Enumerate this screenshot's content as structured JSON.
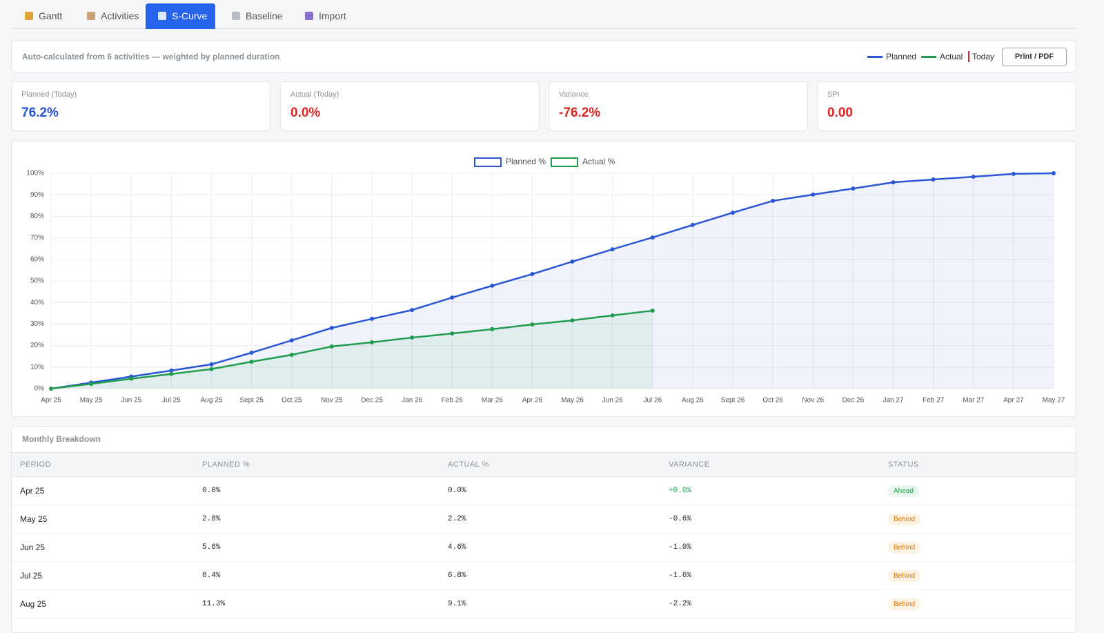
{
  "tabs": [
    "Gantt",
    "Activities",
    "S-Curve",
    "Baseline",
    "Import"
  ],
  "header": {
    "note": "Auto-calculated from 6 activities — weighted by planned duration",
    "legend": [
      "Planned",
      "Actual",
      "Today"
    ],
    "button": "Print / PDF"
  },
  "cards": [
    {
      "label": "Planned (Today)",
      "value": "76.2%"
    },
    {
      "label": "Actual (Today)",
      "value": "0.0%"
    },
    {
      "label": "Variance",
      "value": "-76.2%"
    },
    {
      "label": "SPI",
      "value": "0.00"
    }
  ],
  "chart_data": {
    "type": "line",
    "categories": [
      "Apr 25",
      "May 25",
      "Jun 25",
      "Jul 25",
      "Aug 25",
      "Sept 25",
      "Oct 25",
      "Nov 25",
      "Dec 25",
      "Jan 26",
      "Feb 26",
      "Mar 26",
      "Apr 26",
      "May 26",
      "Jun 26",
      "Jul 26",
      "Aug 26",
      "Sept 26",
      "Oct 26",
      "Nov 26",
      "Dec 26",
      "Jan 27",
      "Feb 27",
      "Mar 27",
      "Apr 27",
      "May 27"
    ],
    "series": [
      {
        "name": "Planned %",
        "color": "#2a56d6",
        "values": [
          0,
          2.8,
          5.6,
          8.4,
          11.3,
          16.7,
          22.4,
          28.2,
          32.4,
          36.5,
          42.3,
          47.8,
          53.2,
          59.0,
          64.7,
          70.2,
          76.0,
          81.7,
          87.2,
          90.1,
          92.9,
          95.8,
          97.1,
          98.4,
          99.7,
          100
        ]
      },
      {
        "name": "Actual %",
        "color": "#1f9d4c",
        "values": [
          0,
          2.2,
          4.6,
          6.8,
          9.1,
          12.5,
          15.7,
          19.6,
          21.5,
          23.7,
          25.6,
          27.6,
          29.8,
          31.7,
          34.0,
          36.2,
          null,
          null,
          null,
          null,
          null,
          null,
          null,
          null,
          null,
          null
        ]
      }
    ],
    "ylim": [
      0,
      100
    ],
    "yticks": [
      {
        "value": 0,
        "label": "0%"
      },
      {
        "value": 10,
        "label": "10%"
      },
      {
        "value": 20,
        "label": "20%"
      },
      {
        "value": 30,
        "label": "30%"
      },
      {
        "value": 40,
        "label": "40%"
      },
      {
        "value": 50,
        "label": "50%"
      },
      {
        "value": 60,
        "label": "60%"
      },
      {
        "value": 70,
        "label": "70%"
      },
      {
        "value": 80,
        "label": "80%"
      },
      {
        "value": 90,
        "label": "90%"
      },
      {
        "value": 100,
        "label": "100%"
      }
    ],
    "grid": true,
    "legend": "top"
  },
  "table": {
    "title": "Monthly Breakdown",
    "columns": [
      "PERIOD",
      "PLANNED %",
      "ACTUAL %",
      "VARIANCE",
      "STATUS"
    ],
    "rows": [
      [
        "Apr 25",
        "0.0%",
        "0.0%",
        "+0.0%",
        "Ahead"
      ],
      [
        "May 25",
        "2.8%",
        "2.2%",
        "-0.6%",
        "Behind"
      ],
      [
        "Jun 25",
        "5.6%",
        "4.6%",
        "-1.0%",
        "Behind"
      ],
      [
        "Jul 25",
        "8.4%",
        "6.8%",
        "-1.6%",
        "Behind"
      ],
      [
        "Aug 25",
        "11.3%",
        "9.1%",
        "-2.2%",
        "Behind"
      ]
    ]
  }
}
